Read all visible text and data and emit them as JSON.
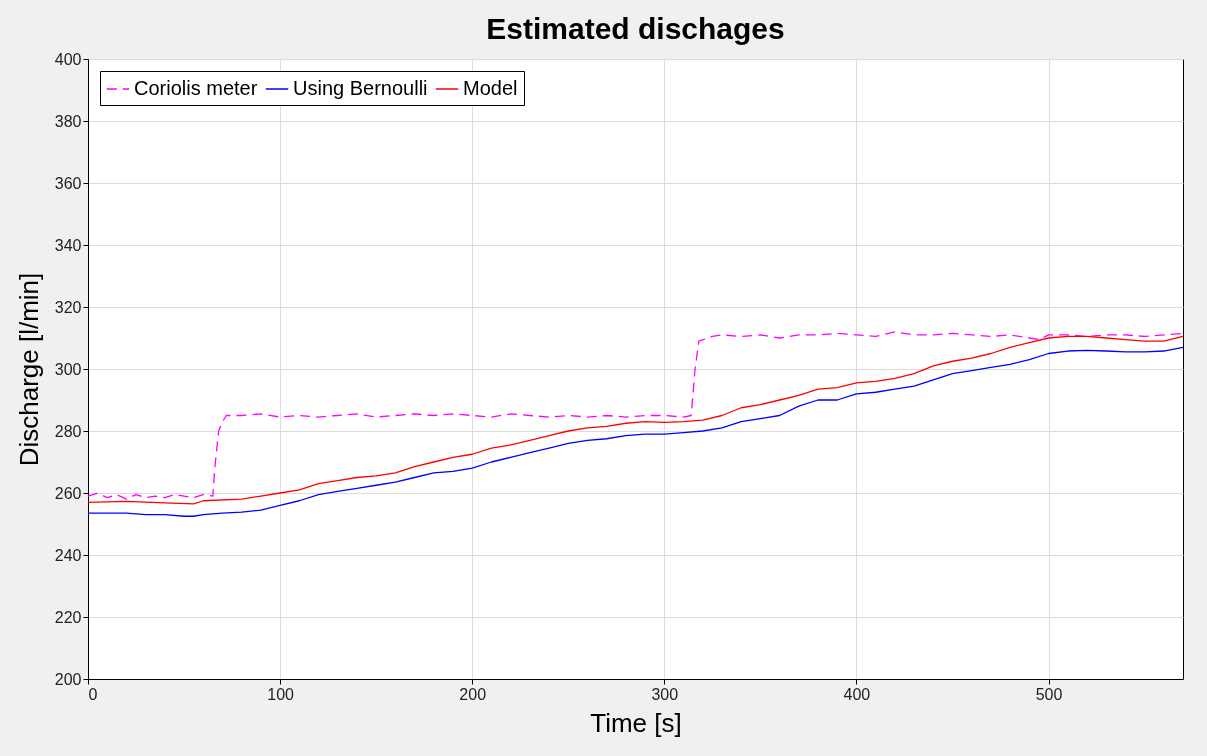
{
  "chart_data": {
    "type": "line",
    "title": "Estimated dischages",
    "xlabel": "Time [s]",
    "ylabel": "Discharge [l/min]",
    "xlim": [
      0,
      570
    ],
    "xticks": [
      0,
      100,
      200,
      300,
      400,
      500
    ],
    "ylim": [
      200,
      400
    ],
    "yticks": [
      200,
      220,
      240,
      260,
      280,
      300,
      320,
      340,
      360,
      380,
      400
    ],
    "grid": true,
    "legend": "top left",
    "marker": "none",
    "series": [
      {
        "name": "Coriolis meter",
        "color": "#ff00ff",
        "line_style": "dashed",
        "x": [
          0,
          5,
          10,
          15,
          20,
          25,
          30,
          35,
          40,
          45,
          50,
          55,
          60,
          65,
          66,
          68,
          70,
          72,
          80,
          90,
          100,
          110,
          120,
          130,
          140,
          150,
          160,
          170,
          180,
          190,
          200,
          210,
          220,
          230,
          240,
          250,
          260,
          270,
          280,
          290,
          300,
          310,
          314,
          316,
          318,
          325,
          330,
          340,
          350,
          360,
          370,
          380,
          390,
          400,
          410,
          420,
          430,
          440,
          450,
          460,
          470,
          480,
          490,
          495,
          500,
          510,
          520,
          530,
          540,
          550,
          560,
          570
        ],
        "values": [
          259,
          260,
          258.5,
          259.5,
          258,
          259.5,
          258.5,
          259,
          258.5,
          259.5,
          259,
          258.5,
          259.5,
          259,
          268,
          280,
          283,
          285,
          285,
          285.5,
          284.5,
          285,
          284.5,
          285,
          285.5,
          284.5,
          285,
          285.5,
          285,
          285.5,
          285,
          284.5,
          285.5,
          285,
          284.5,
          285,
          284.5,
          285,
          284.5,
          285,
          285,
          284.5,
          285,
          300,
          309,
          310.5,
          311,
          310.5,
          311,
          310,
          311,
          311,
          311.5,
          311,
          310.5,
          312,
          311,
          311,
          311.5,
          311,
          310.5,
          311,
          310,
          309.5,
          311,
          311,
          310.5,
          311,
          311,
          310.5,
          311,
          311.5
        ]
      },
      {
        "name": "Using Bernoulli",
        "color": "#0000ff",
        "line_style": "solid",
        "x": [
          0,
          10,
          20,
          30,
          40,
          50,
          55,
          60,
          70,
          80,
          90,
          100,
          110,
          120,
          130,
          140,
          150,
          160,
          170,
          180,
          190,
          200,
          210,
          220,
          230,
          240,
          250,
          260,
          270,
          280,
          290,
          300,
          310,
          320,
          330,
          340,
          350,
          360,
          370,
          380,
          390,
          400,
          410,
          420,
          430,
          440,
          450,
          460,
          470,
          480,
          490,
          500,
          510,
          520,
          530,
          540,
          550,
          560,
          570
        ],
        "values": [
          253.5,
          253.5,
          253.5,
          253,
          253,
          252.5,
          252.5,
          253,
          253.5,
          253.8,
          254.5,
          256,
          257.5,
          259.5,
          260.5,
          261.5,
          262.5,
          263.5,
          265,
          266.5,
          267,
          268,
          270,
          271.5,
          273,
          274.5,
          276,
          277,
          277.5,
          278.5,
          279,
          279,
          279.5,
          280,
          281,
          283,
          284,
          285,
          288,
          290,
          290,
          292,
          292.5,
          293.5,
          294.5,
          296.5,
          298.5,
          299.5,
          300.5,
          301.5,
          303,
          305,
          305.8,
          306,
          305.8,
          305.5,
          305.5,
          305.8,
          307
        ]
      },
      {
        "name": "Model",
        "color": "#ff0000",
        "line_style": "solid",
        "x": [
          0,
          20,
          40,
          55,
          60,
          80,
          90,
          100,
          110,
          120,
          130,
          140,
          150,
          160,
          170,
          180,
          190,
          200,
          210,
          220,
          230,
          240,
          250,
          260,
          270,
          280,
          290,
          300,
          310,
          320,
          330,
          340,
          350,
          360,
          370,
          380,
          390,
          400,
          410,
          420,
          430,
          440,
          450,
          460,
          470,
          480,
          490,
          500,
          510,
          520,
          530,
          540,
          550,
          560,
          570
        ],
        "values": [
          257,
          257.3,
          256.8,
          256.5,
          257.5,
          258,
          259,
          260,
          261,
          263,
          264,
          265,
          265.5,
          266.5,
          268.5,
          270,
          271.5,
          272.5,
          274.5,
          275.5,
          277,
          278.5,
          280,
          281,
          281.5,
          282.5,
          283,
          282.8,
          283,
          283.5,
          285,
          287.5,
          288.5,
          290,
          291.5,
          293.5,
          294,
          295.5,
          296,
          297,
          298.5,
          301,
          302.5,
          303.5,
          305,
          307,
          308.5,
          310,
          310.5,
          310.5,
          310,
          309.5,
          309,
          309,
          310.5
        ]
      }
    ]
  }
}
